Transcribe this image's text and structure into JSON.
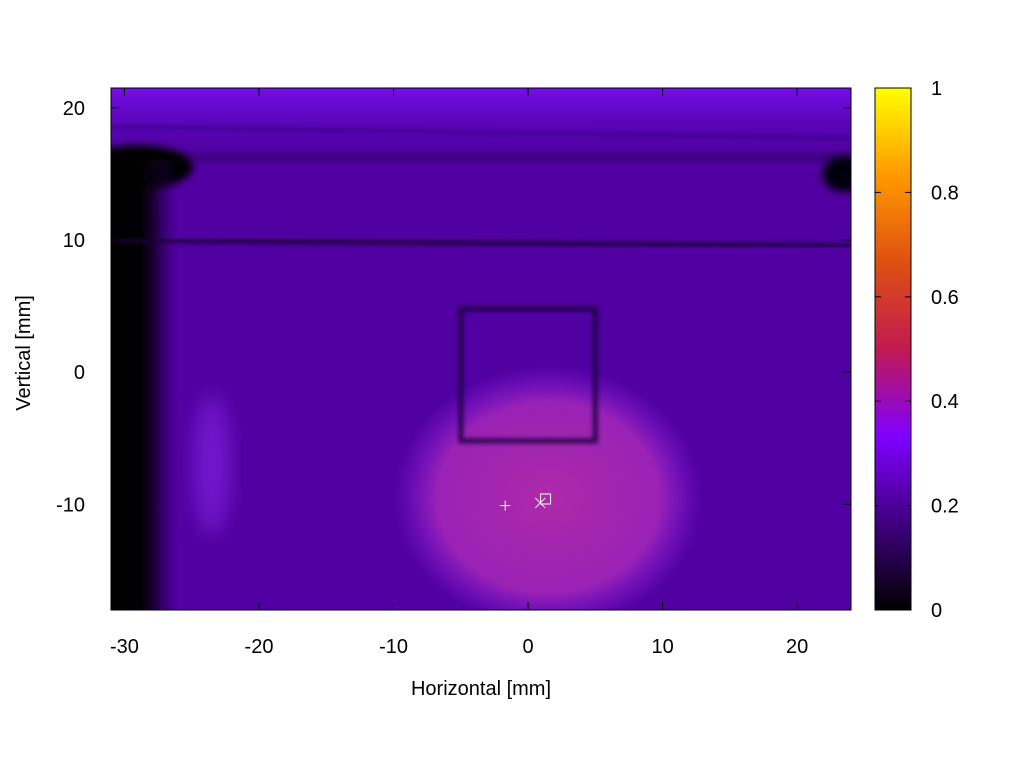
{
  "chart_data": {
    "type": "heatmap",
    "xlabel": "Horizontal [mm]",
    "ylabel": "Vertical [mm]",
    "xlim": [
      -31,
      24
    ],
    "ylim": [
      -18,
      21.5
    ],
    "x_ticks": [
      -30,
      -20,
      -10,
      0,
      10,
      20
    ],
    "y_ticks": [
      -10,
      0,
      10,
      20
    ],
    "colorbar": {
      "range": [
        0,
        1
      ],
      "ticks": [
        0,
        0.2,
        0.4,
        0.6,
        0.8,
        1
      ],
      "tick_labels": [
        "0",
        "0.2",
        "0.4",
        "0.6",
        "0.8",
        "1"
      ],
      "colormap": [
        "#000000",
        "#400080",
        "#8000ff",
        "#c01a50",
        "#e05010",
        "#ff9900",
        "#ffff00"
      ]
    },
    "field": {
      "base_intensity": 0.21,
      "bright_region": {
        "center": [
          1.5,
          -9.5
        ],
        "radius": [
          11.5,
          10.0
        ],
        "peak": 0.34
      },
      "dark_left_edge_x": -31,
      "dark_band_top_y": 16.5
    },
    "grid_lines_x": [
      -20,
      -10,
      0,
      10,
      19
    ],
    "grid_lines_y": [
      -10,
      0,
      10
    ],
    "inner_box": {
      "x": [
        -5,
        5
      ],
      "y": [
        -5.2,
        4.8
      ],
      "mid_x": 0
    },
    "markers": [
      {
        "symbol": "plus",
        "x": -1.7,
        "y": -10.1
      },
      {
        "symbol": "cross",
        "x": 0.9,
        "y": -9.9
      },
      {
        "symbol": "square",
        "x": 1.3,
        "y": -9.6
      }
    ]
  }
}
